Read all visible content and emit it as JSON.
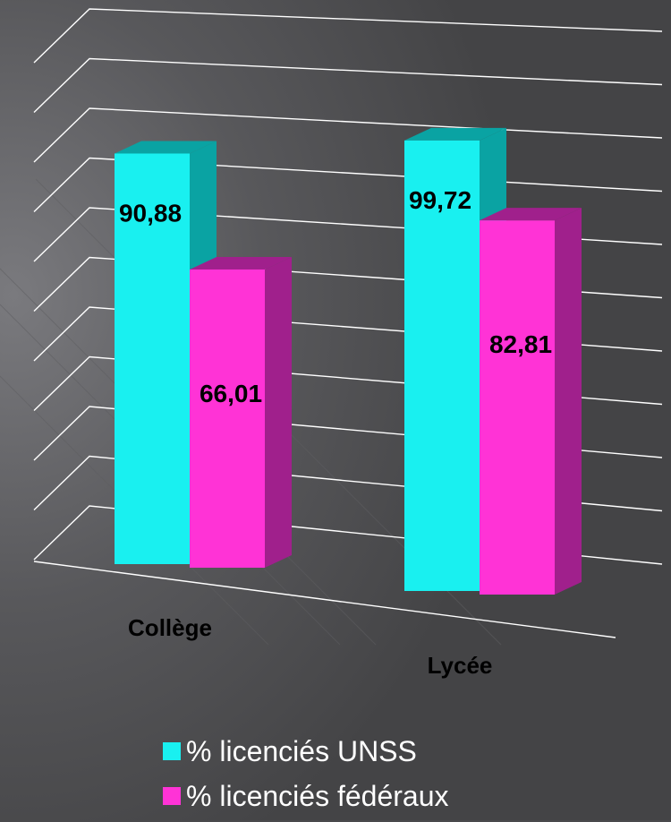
{
  "chart_data": {
    "type": "bar",
    "categories": [
      "Collège",
      "Lycée"
    ],
    "series": [
      {
        "name": "% licenciés UNSS",
        "values": [
          90.88,
          99.72
        ],
        "labels": [
          "90,88",
          "99,72"
        ],
        "color": "#19f0f0",
        "side_color": "#0aa3a3"
      },
      {
        "name": "% licenciés fédéraux",
        "values": [
          66.01,
          82.81
        ],
        "labels": [
          "66,01",
          "82,81"
        ],
        "color": "#ff33d6",
        "side_color": "#a0208c"
      }
    ],
    "ylim": [
      0,
      110
    ],
    "grid": true,
    "legend_position": "bottom",
    "background": "#4a4a4c"
  }
}
